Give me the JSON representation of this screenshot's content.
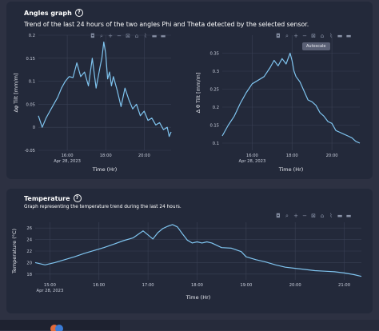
{
  "angles": {
    "title": "Angles graph",
    "description": "Trend of the last 24 hours of the two angles Phi and Theta detected by the selected sensor.",
    "tooltip": "Autoscale",
    "toolbar_icons": [
      "camera-icon",
      "zoom-icon",
      "plus-icon",
      "minus-icon",
      "autoscale-icon",
      "home-icon",
      "spike-icon",
      "compare-icon",
      "hover-icon"
    ]
  },
  "temperature": {
    "title": "Temperature",
    "description": "Graph representing the temperature trend during the last 24 hours.",
    "toolbar_icons": [
      "camera-icon",
      "zoom-icon",
      "plus-icon",
      "minus-icon",
      "autoscale-icon",
      "home-icon",
      "spike-icon",
      "compare-icon",
      "hover-icon"
    ]
  },
  "colors": {
    "line": "#7fc4ef",
    "card": "#23293a",
    "background": "#2d3142",
    "grid": "#3a4154"
  },
  "chart_data": [
    {
      "type": "line",
      "ylabel": "Δφ Tilt [mm/m]",
      "xlabel": "Time (Hr)",
      "xticks": [
        "16:00",
        "18:00",
        "20:00"
      ],
      "xdate": "Apr 28, 2023",
      "yticks": [
        "0.2",
        "0.15",
        "0.1",
        "0.05",
        "0",
        "-0.05"
      ],
      "ylim": [
        -0.05,
        0.2
      ],
      "xlim": [
        14.5,
        21.4
      ],
      "series": [
        {
          "x": [
            14.5,
            14.7,
            14.9,
            15.1,
            15.3,
            15.5,
            15.7,
            15.9,
            16.1,
            16.3,
            16.5,
            16.7,
            16.9,
            17.1,
            17.3,
            17.5,
            17.7,
            17.8,
            17.9,
            18.0,
            18.1,
            18.2,
            18.3,
            18.4,
            18.6,
            18.8,
            19.0,
            19.2,
            19.4,
            19.6,
            19.8,
            20.0,
            20.2,
            20.4,
            20.6,
            20.8,
            21.0,
            21.2,
            21.3,
            21.4
          ],
          "values": [
            0.025,
            0.0,
            0.02,
            0.035,
            0.05,
            0.065,
            0.085,
            0.1,
            0.11,
            0.108,
            0.14,
            0.11,
            0.12,
            0.09,
            0.15,
            0.085,
            0.13,
            0.15,
            0.185,
            0.16,
            0.105,
            0.12,
            0.09,
            0.11,
            0.08,
            0.045,
            0.085,
            0.06,
            0.04,
            0.05,
            0.025,
            0.035,
            0.015,
            0.02,
            0.005,
            0.01,
            -0.005,
            0.0,
            -0.02,
            -0.01
          ]
        }
      ]
    },
    {
      "type": "line",
      "ylabel": "Δ θ Tilt [mm/m]",
      "xlabel": "Time (Hr)",
      "xticks": [
        "16:00",
        "18:00",
        "20:00"
      ],
      "xdate": "Apr 28, 2023",
      "yticks": [
        "0.35",
        "0.3",
        "0.25",
        "0.2",
        "0.15",
        "0.1"
      ],
      "ylim": [
        0.08,
        0.4
      ],
      "xlim": [
        14.5,
        21.4
      ],
      "series": [
        {
          "x": [
            14.5,
            14.8,
            15.1,
            15.4,
            15.7,
            16.0,
            16.3,
            16.6,
            16.9,
            17.1,
            17.3,
            17.5,
            17.7,
            17.9,
            18.0,
            18.1,
            18.2,
            18.4,
            18.6,
            18.8,
            19.0,
            19.2,
            19.4,
            19.6,
            19.8,
            20.0,
            20.2,
            20.4,
            20.6,
            20.8,
            21.0,
            21.2,
            21.4
          ],
          "values": [
            0.12,
            0.15,
            0.175,
            0.21,
            0.24,
            0.265,
            0.275,
            0.285,
            0.31,
            0.33,
            0.315,
            0.335,
            0.32,
            0.35,
            0.33,
            0.3,
            0.285,
            0.27,
            0.245,
            0.22,
            0.215,
            0.205,
            0.185,
            0.175,
            0.16,
            0.155,
            0.135,
            0.13,
            0.125,
            0.12,
            0.115,
            0.105,
            0.1
          ]
        }
      ]
    },
    {
      "type": "line",
      "ylabel": "Temperature (°C)",
      "xlabel": "Time (Hr)",
      "xticks": [
        "15:00",
        "16:00",
        "17:00",
        "18:00",
        "19:00",
        "20:00",
        "21:00"
      ],
      "xdate": "Apr 28, 2023",
      "yticks": [
        "26",
        "24",
        "22",
        "20",
        "18"
      ],
      "ylim": [
        17,
        27
      ],
      "xlim": [
        14.7,
        21.35
      ],
      "series": [
        {
          "x": [
            14.7,
            14.9,
            15.1,
            15.3,
            15.5,
            15.7,
            15.9,
            16.1,
            16.3,
            16.5,
            16.7,
            16.9,
            17.0,
            17.1,
            17.2,
            17.3,
            17.4,
            17.5,
            17.6,
            17.7,
            17.8,
            17.9,
            18.0,
            18.1,
            18.2,
            18.3,
            18.5,
            18.7,
            18.9,
            19.0,
            19.2,
            19.4,
            19.6,
            19.8,
            20.0,
            20.2,
            20.4,
            20.6,
            20.8,
            21.0,
            21.2,
            21.35
          ],
          "values": [
            20.0,
            19.6,
            20.0,
            20.5,
            21.0,
            21.6,
            22.1,
            22.6,
            23.2,
            23.8,
            24.3,
            25.5,
            24.8,
            24.1,
            25.2,
            25.9,
            26.3,
            26.6,
            26.2,
            25.0,
            23.9,
            23.4,
            23.6,
            23.4,
            23.6,
            23.4,
            22.6,
            22.5,
            21.9,
            21.0,
            20.5,
            20.1,
            19.6,
            19.2,
            19.0,
            18.8,
            18.6,
            18.5,
            18.4,
            18.2,
            17.9,
            17.6
          ]
        }
      ]
    }
  ]
}
